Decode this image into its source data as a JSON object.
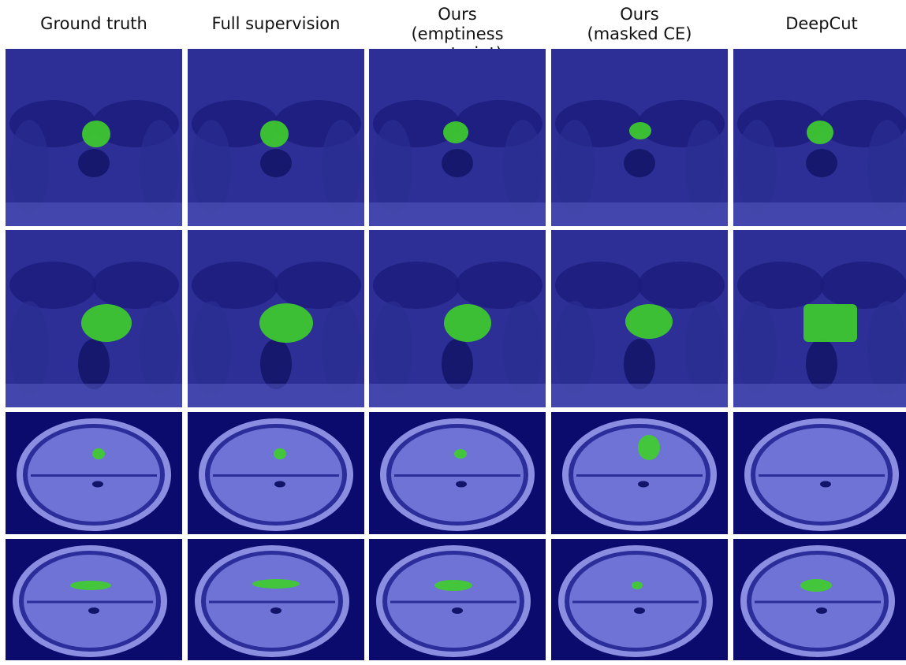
{
  "columns": [
    {
      "lines": [
        "Ground truth"
      ]
    },
    {
      "lines": [
        "Full supervision"
      ]
    },
    {
      "lines": [
        "Ours",
        "(emptiness constraint)"
      ]
    },
    {
      "lines": [
        "Ours",
        "(masked CE)"
      ]
    },
    {
      "lines": [
        "DeepCut"
      ]
    }
  ],
  "rows": [
    {
      "modality": "prostate-mri",
      "view": "wide"
    },
    {
      "modality": "prostate-mri",
      "view": "close"
    },
    {
      "modality": "brain-mri",
      "view": "upper"
    },
    {
      "modality": "brain-mri",
      "view": "lower"
    }
  ],
  "colors": {
    "background": "#0b0b6e",
    "tissue": "#6f73d6",
    "segmentation": "#3ecf2a"
  }
}
